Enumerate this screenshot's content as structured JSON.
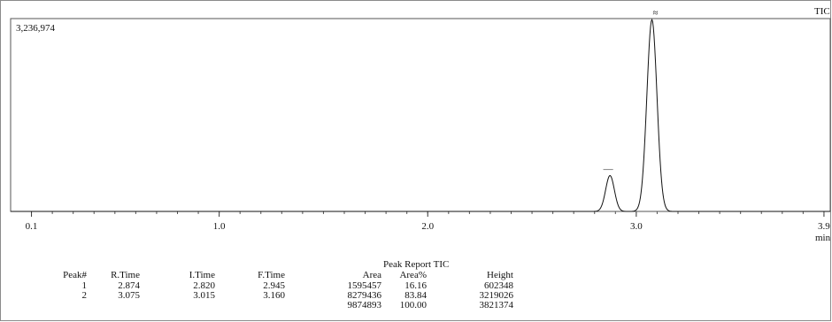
{
  "chart_data": {
    "type": "line",
    "series_label": "TIC",
    "max_intensity_label": "3,236,974",
    "x_unit": "min",
    "xlim": [
      0.0,
      3.93
    ],
    "ylim": [
      0,
      3236974
    ],
    "x_ticks": [
      {
        "value": 0.1,
        "label": "0.1"
      },
      {
        "value": 1.0,
        "label": "1.0"
      },
      {
        "value": 2.0,
        "label": "2.0"
      },
      {
        "value": 3.0,
        "label": "3.0"
      },
      {
        "value": 3.9,
        "label": "3.9"
      }
    ],
    "baseline": 0,
    "peaks": [
      {
        "number": "1",
        "r_time": 2.874,
        "i_time": 2.82,
        "f_time": 2.945,
        "height": 602348,
        "marker": "—"
      },
      {
        "number": "2",
        "r_time": 3.075,
        "i_time": 3.015,
        "f_time": 3.16,
        "height": 3219026,
        "marker": "≈"
      }
    ]
  },
  "report": {
    "title": "Peak Report TIC",
    "headers": [
      "Peak#",
      "R.Time",
      "I.Time",
      "F.Time",
      "Area",
      "Area%",
      "Height"
    ],
    "rows": [
      [
        "1",
        "2.874",
        "2.820",
        "2.945",
        "1595457",
        "16.16",
        "602348"
      ],
      [
        "2",
        "3.075",
        "3.015",
        "3.160",
        "8279436",
        "83.84",
        "3219026"
      ]
    ],
    "totals": [
      "",
      "",
      "",
      "",
      "9874893",
      "100.00",
      "3821374"
    ]
  }
}
